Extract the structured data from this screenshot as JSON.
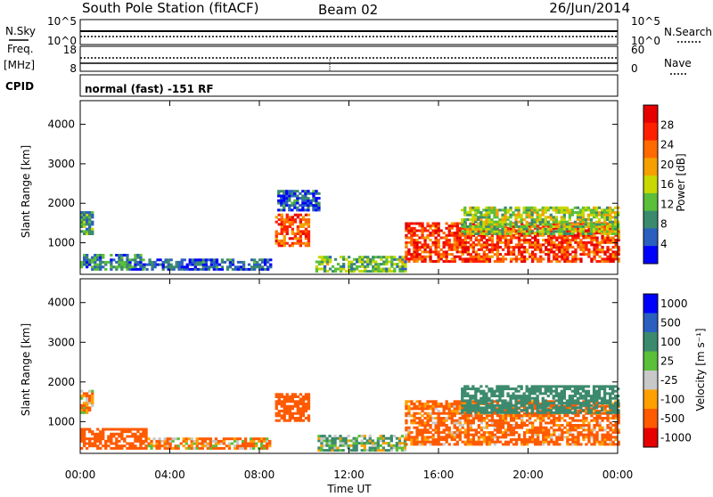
{
  "header": {
    "station": "South Pole Station (fitACF)",
    "beam": "Beam 02",
    "date": "26/Jun/2014"
  },
  "status_panels": {
    "nsky_label": "N.Sky",
    "nsky_ticks": [
      "10^5",
      "10^0"
    ],
    "nsearch_label": "N.Search",
    "nsearch_ticks": [
      "10^5",
      "10^0"
    ],
    "freq_label": "Freq.",
    "freq_unit": "[MHz]",
    "freq_ticks": [
      "18",
      "8"
    ],
    "nave_label": "Nave",
    "nave_ticks": [
      "60",
      "0"
    ],
    "cpid_label": "CPID",
    "cpid_text": "normal (fast) -151 RF"
  },
  "colors": {
    "power_scale": [
      "#0000ff",
      "#2a5fc0",
      "#3c8a6e",
      "#5bbf3a",
      "#c8d800",
      "#f5a000",
      "#ff6a00",
      "#ff2000",
      "#e60000"
    ],
    "velocity_scale": [
      "#e60000",
      "#ff5a00",
      "#ffa000",
      "#c8c8c8",
      "#5bbf3a",
      "#3c8a6e",
      "#2a5fc0",
      "#0000ff"
    ]
  },
  "chart_data": [
    {
      "type": "heatmap",
      "name": "power",
      "ylabel": "Slant Range [km]",
      "yticks": [
        1000,
        2000,
        3000,
        4000
      ],
      "ylim": [
        200,
        4600
      ],
      "xlim_hours": [
        0,
        24
      ],
      "colorbar": {
        "label": "Power [dB]",
        "ticks": [
          4,
          8,
          12,
          16,
          20,
          24,
          28
        ],
        "range": [
          0,
          32
        ]
      },
      "regions": [
        {
          "t": [
            0.0,
            0.6
          ],
          "r": [
            1200,
            1800
          ],
          "v": 10
        },
        {
          "t": [
            0.0,
            2.8
          ],
          "r": [
            300,
            700
          ],
          "v": 8
        },
        {
          "t": [
            2.8,
            8.5
          ],
          "r": [
            300,
            600
          ],
          "v": 5
        },
        {
          "t": [
            8.7,
            10.2
          ],
          "r": [
            900,
            1700
          ],
          "v": 24
        },
        {
          "t": [
            8.8,
            10.6
          ],
          "r": [
            1800,
            2300
          ],
          "v": 5
        },
        {
          "t": [
            10.5,
            14.5
          ],
          "r": [
            250,
            650
          ],
          "v": 12
        },
        {
          "t": [
            14.5,
            24.0
          ],
          "r": [
            500,
            1500
          ],
          "v": 26
        },
        {
          "t": [
            17.0,
            24.0
          ],
          "r": [
            1200,
            1900
          ],
          "v": 14
        }
      ]
    },
    {
      "type": "heatmap",
      "name": "velocity",
      "ylabel": "Slant Range [km]",
      "xlabel": "Time UT",
      "xticks": [
        "00:00",
        "04:00",
        "08:00",
        "12:00",
        "16:00",
        "20:00",
        "00:00"
      ],
      "yticks": [
        1000,
        2000,
        3000,
        4000
      ],
      "ylim": [
        200,
        4600
      ],
      "xlim_hours": [
        0,
        24
      ],
      "colorbar": {
        "label": "Velocity [m s⁻¹]",
        "ticks": [
          "1000",
          "500",
          "100",
          "25",
          "-25",
          "-100",
          "-500",
          "-1000"
        ]
      },
      "regions": [
        {
          "t": [
            0.0,
            0.6
          ],
          "r": [
            1200,
            1800
          ],
          "v": -100
        },
        {
          "t": [
            0.0,
            3.0
          ],
          "r": [
            300,
            800
          ],
          "v": -300
        },
        {
          "t": [
            3.0,
            8.5
          ],
          "r": [
            300,
            600
          ],
          "v": -100
        },
        {
          "t": [
            8.7,
            10.2
          ],
          "r": [
            1000,
            1700
          ],
          "v": -300
        },
        {
          "t": [
            10.6,
            14.5
          ],
          "r": [
            250,
            650
          ],
          "v": 100
        },
        {
          "t": [
            14.5,
            24.0
          ],
          "r": [
            400,
            1500
          ],
          "v": -200
        },
        {
          "t": [
            17.0,
            24.0
          ],
          "r": [
            1200,
            1900
          ],
          "v": 300
        }
      ]
    }
  ]
}
